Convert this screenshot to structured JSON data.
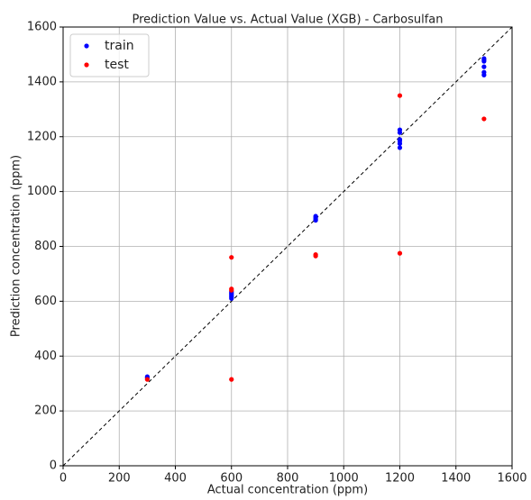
{
  "chart_data": {
    "type": "scatter",
    "title": "Prediction Value vs. Actual Value (XGB) - Carbosulfan",
    "x_label": "Actual concentration (ppm)",
    "y_label": "Prediction concentration (ppm)",
    "xlim": [
      0,
      1600
    ],
    "ylim": [
      0,
      1600
    ],
    "xticks": [
      0,
      200,
      400,
      600,
      800,
      1000,
      1200,
      1400,
      1600
    ],
    "yticks": [
      0,
      200,
      400,
      600,
      800,
      1000,
      1200,
      1400,
      1600
    ],
    "grid": true,
    "legend": "upper-left",
    "diagonal": true,
    "series": [
      {
        "name": "train",
        "color": "#0000ff",
        "x": [
          300,
          300,
          600,
          600,
          600,
          600,
          600,
          600,
          900,
          900,
          900,
          900,
          1200,
          1200,
          1200,
          1200,
          1200,
          1200,
          1500,
          1500,
          1500,
          1500,
          1500,
          1500
        ],
        "values": [
          320,
          325,
          610,
          615,
          620,
          625,
          630,
          635,
          895,
          900,
          905,
          910,
          1160,
          1175,
          1185,
          1190,
          1215,
          1225,
          1425,
          1435,
          1455,
          1475,
          1480,
          1485
        ]
      },
      {
        "name": "test",
        "color": "#ff0000",
        "x": [
          300,
          600,
          600,
          600,
          600,
          900,
          900,
          1200,
          1200,
          1500
        ],
        "values": [
          315,
          315,
          640,
          645,
          760,
          765,
          770,
          775,
          1350,
          1265
        ]
      }
    ]
  }
}
